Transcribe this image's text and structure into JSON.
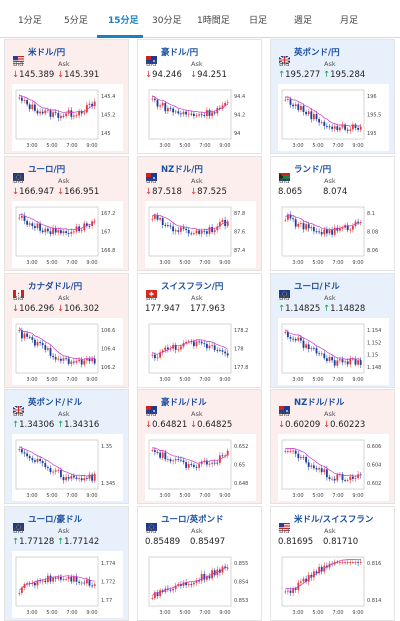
{
  "tabs": [
    "1分足",
    "5分足",
    "15分足",
    "30分足",
    "1時間足",
    "日足",
    "週足",
    "月足"
  ],
  "active_tab": "15分足",
  "labels": {
    "bid": "Bid",
    "ask": "Ask"
  },
  "cards": [
    {
      "title": "米ドル/円",
      "bid": "145.389",
      "ask": "145.391",
      "bid_dir": "down",
      "ask_dir": "down",
      "bg": "pink",
      "flag": "us-jp",
      "yticks": [
        "145.4",
        "145.2",
        "145"
      ],
      "xticks": [
        "3:00",
        "5:00",
        "7:00",
        "9:00"
      ]
    },
    {
      "title": "豪ドル/円",
      "bid": "94.246",
      "ask": "94.251",
      "bid_dir": "down",
      "ask_dir": "down",
      "bg": "white",
      "flag": "au-jp",
      "yticks": [
        "94.4",
        "94.2",
        "94"
      ],
      "xticks": [
        "3:00",
        "5:00",
        "7:00",
        "9:00"
      ]
    },
    {
      "title": "英ポンド/円",
      "bid": "195.277",
      "ask": "195.284",
      "bid_dir": "up",
      "ask_dir": "up",
      "bg": "blue",
      "flag": "gb-jp",
      "yticks": [
        "196",
        "195.5",
        "195"
      ],
      "xticks": [
        "3:00",
        "5:00",
        "7:00",
        "9:00"
      ]
    },
    {
      "title": "ユーロ/円",
      "bid": "166.947",
      "ask": "166.951",
      "bid_dir": "down",
      "ask_dir": "down",
      "bg": "pink",
      "flag": "eu-jp",
      "yticks": [
        "167.2",
        "167",
        "166.8"
      ],
      "xticks": [
        "3:00",
        "5:00",
        "7:00",
        "9:00"
      ]
    },
    {
      "title": "NZドル/円",
      "bid": "87.518",
      "ask": "87.525",
      "bid_dir": "down",
      "ask_dir": "down",
      "bg": "pink",
      "flag": "nz-jp",
      "yticks": [
        "87.8",
        "87.6",
        "87.4"
      ],
      "xticks": [
        "3:00",
        "5:00",
        "7:00",
        "9:00"
      ]
    },
    {
      "title": "ランド/円",
      "bid": "8.065",
      "ask": "8.074",
      "bid_dir": "none",
      "ask_dir": "none",
      "bg": "white",
      "flag": "za-jp",
      "yticks": [
        "8.1",
        "8.08",
        "8.06"
      ],
      "xticks": [
        "3:00",
        "5:00",
        "7:00",
        "9:00"
      ]
    },
    {
      "title": "カナダドル/円",
      "bid": "106.296",
      "ask": "106.302",
      "bid_dir": "down",
      "ask_dir": "down",
      "bg": "pink",
      "flag": "ca-jp",
      "yticks": [
        "106.6",
        "106.4",
        "106.2"
      ],
      "xticks": [
        "3:00",
        "5:00",
        "7:00",
        "9:00"
      ]
    },
    {
      "title": "スイスフラン/円",
      "bid": "177.947",
      "ask": "177.963",
      "bid_dir": "none",
      "ask_dir": "none",
      "bg": "white",
      "flag": "ch-jp",
      "yticks": [
        "178.2",
        "178",
        "177.8"
      ],
      "xticks": [
        "3:00",
        "5:00",
        "7:00",
        "9:00"
      ]
    },
    {
      "title": "ユーロ/ドル",
      "bid": "1.14825",
      "ask": "1.14828",
      "bid_dir": "up",
      "ask_dir": "up",
      "bg": "blue",
      "flag": "eu-us",
      "yticks": [
        "1.154",
        "1.152",
        "1.15",
        "1.148"
      ],
      "xticks": [
        "3:00",
        "5:00",
        "7:00",
        "9:00"
      ]
    },
    {
      "title": "英ポンド/ドル",
      "bid": "1.34306",
      "ask": "1.34316",
      "bid_dir": "up",
      "ask_dir": "up",
      "bg": "blue",
      "flag": "gb-us",
      "yticks": [
        "1.35",
        "1.345"
      ],
      "xticks": [
        "3:00",
        "5:00",
        "7:00",
        "9:00"
      ]
    },
    {
      "title": "豪ドル/ドル",
      "bid": "0.64821",
      "ask": "0.64825",
      "bid_dir": "down",
      "ask_dir": "down",
      "bg": "pink",
      "flag": "au-us",
      "yticks": [
        "0.652",
        "0.65",
        "0.648"
      ],
      "xticks": [
        "3:00",
        "5:00",
        "7:00",
        "9:00"
      ]
    },
    {
      "title": "NZドル/ドル",
      "bid": "0.60209",
      "ask": "0.60223",
      "bid_dir": "down",
      "ask_dir": "down",
      "bg": "pink",
      "flag": "nz-us",
      "yticks": [
        "0.606",
        "0.604",
        "0.602"
      ],
      "xticks": [
        "3:00",
        "5:00",
        "7:00",
        "9:00"
      ]
    },
    {
      "title": "ユーロ/豪ドル",
      "bid": "1.77128",
      "ask": "1.77142",
      "bid_dir": "up",
      "ask_dir": "up",
      "bg": "blue",
      "flag": "eu-au",
      "yticks": [
        "1.774",
        "1.772",
        "1.77"
      ],
      "xticks": [
        "3:00",
        "5:00",
        "7:00",
        "9:00"
      ]
    },
    {
      "title": "ユーロ/英ポンド",
      "bid": "0.85489",
      "ask": "0.85497",
      "bid_dir": "none",
      "ask_dir": "none",
      "bg": "white",
      "flag": "eu-gb",
      "yticks": [
        "0.855",
        "0.854",
        "0.853"
      ],
      "xticks": [
        "3:00",
        "5:00",
        "7:00",
        "9:00"
      ]
    },
    {
      "title": "米ドル/スイスフラン",
      "bid": "0.81695",
      "ask": "0.81710",
      "bid_dir": "none",
      "ask_dir": "none",
      "bg": "white",
      "flag": "us-ch",
      "yticks": [
        "0.816",
        "0.814"
      ],
      "xticks": [
        "3:00",
        "5:00",
        "7:00",
        "9:00"
      ]
    }
  ],
  "colors": {
    "up_candle": "#e23b3b",
    "down_candle": "#1d3f9e",
    "ma_line": "#cc33cc",
    "accent": "#1a7fc4",
    "down_text": "#d93030",
    "up_text": "#18a058"
  },
  "chart_shapes": [
    "falling-then-rising",
    "falling-then-rising",
    "falling-then-flat",
    "falling-then-rising",
    "falling-then-rising",
    "falling-then-rising",
    "falling-then-flat",
    "rising-then-falling",
    "falling-then-flat",
    "falling-then-flat",
    "falling-then-rising",
    "falling-then-flat",
    "rising-then-falling",
    "rising",
    "rising-then-flat"
  ]
}
